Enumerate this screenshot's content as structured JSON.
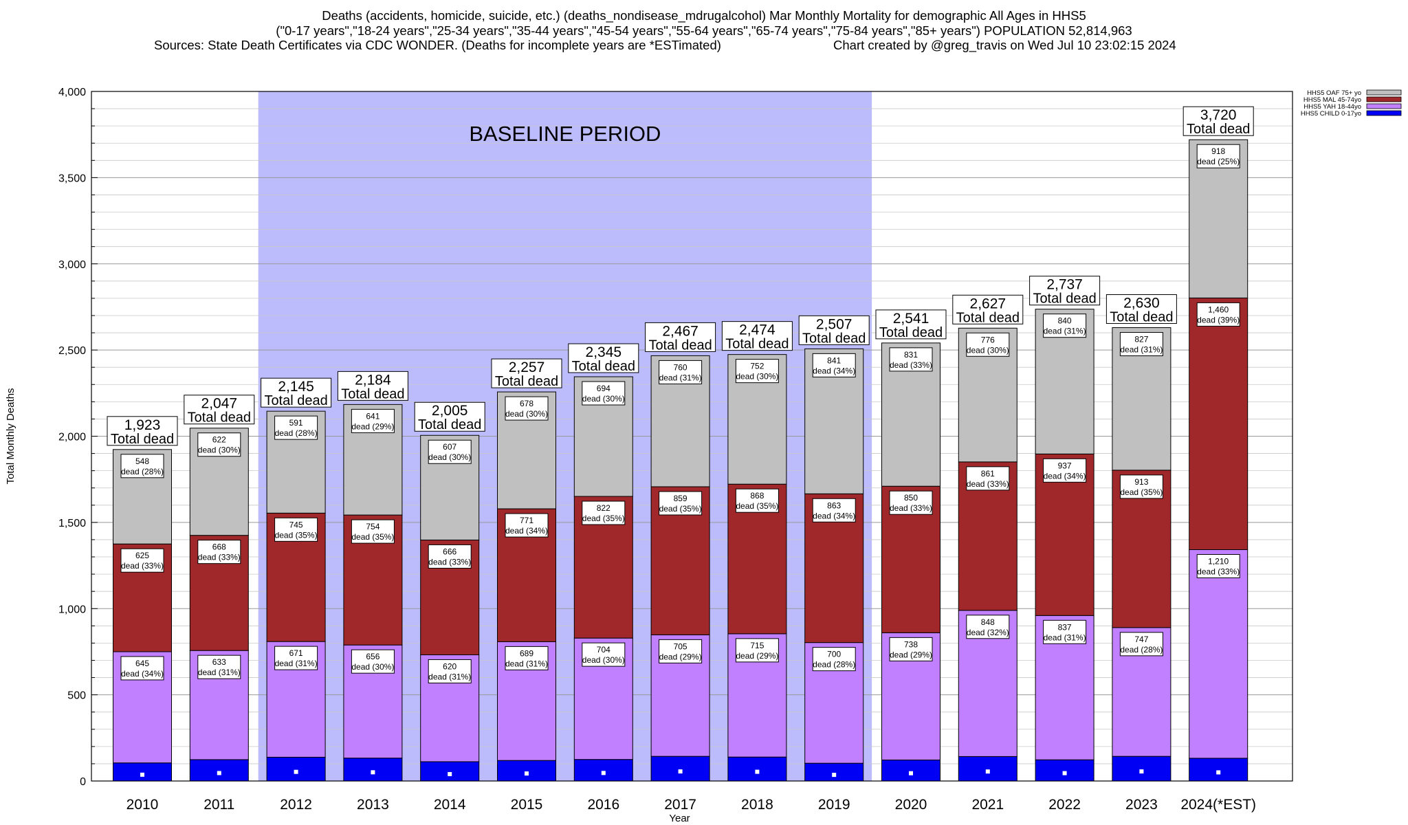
{
  "chart_data": {
    "type": "bar",
    "stacked": true,
    "title_lines": [
      "Deaths (accidents, homicide, suicide, etc.) (deaths_nondisease_mdrugalcohol) Mar Monthly Mortality for demographic All Ages in HHS5",
      "(\"0-17 years\",\"18-24 years\",\"25-34 years\",\"35-44 years\",\"45-54 years\",\"55-64 years\",\"65-74 years\",\"75-84 years\",\"85+ years\") POPULATION 52,814,963",
      "Sources: State Death Certificates via CDC WONDER. (Deaths for incomplete years are *ESTimated)",
      "Chart created by @greg_travis on Wed Jul 10 23:02:15 2024"
    ],
    "xlabel": "Year",
    "ylabel": "Total Monthly Deaths",
    "ylim": [
      0,
      4000
    ],
    "y_ticks": [
      "0",
      "500",
      "1,000",
      "1,500",
      "2,000",
      "2,500",
      "3,000",
      "3,500",
      "4,000"
    ],
    "y_tick_values": [
      0,
      500,
      1000,
      1500,
      2000,
      2500,
      3000,
      3500,
      4000
    ],
    "grid": true,
    "legend_position": "top-right",
    "categories": [
      "2010",
      "2011",
      "2012",
      "2013",
      "2014",
      "2015",
      "2016",
      "2017",
      "2018",
      "2019",
      "2020",
      "2021",
      "2022",
      "2023",
      "2024(*EST)"
    ],
    "baseline": {
      "label": "BASELINE PERIOD",
      "start": "2012",
      "end": "2019",
      "color": "#bcbcfc"
    },
    "series": [
      {
        "name": "HHS5 CHILD 0-17yo",
        "color": "#0000f5",
        "values": [
          105,
          124,
          138,
          133,
          112,
          119,
          125,
          143,
          139,
          103,
          122,
          142,
          123,
          143,
          132
        ]
      },
      {
        "name": "HHS5 YAH 18-44yo",
        "color": "#c080ff",
        "values": [
          645,
          633,
          671,
          656,
          620,
          689,
          704,
          705,
          715,
          700,
          738,
          848,
          837,
          747,
          1210
        ],
        "labels": [
          "645",
          "633",
          "671",
          "656",
          "620",
          "689",
          "704",
          "705",
          "715",
          "700",
          "738",
          "848",
          "837",
          "747",
          "1,210"
        ],
        "pct": [
          "dead (34%)",
          "dead (31%)",
          "dead (31%)",
          "dead (30%)",
          "dead (31%)",
          "dead (31%)",
          "dead (30%)",
          "dead (29%)",
          "dead (29%)",
          "dead (28%)",
          "dead (29%)",
          "dead (32%)",
          "dead (31%)",
          "dead (28%)",
          "dead (33%)"
        ]
      },
      {
        "name": "HHS5 MAL 45-74yo",
        "color": "#a0282a",
        "values": [
          625,
          668,
          745,
          754,
          666,
          771,
          822,
          859,
          868,
          863,
          850,
          861,
          937,
          913,
          1460
        ],
        "labels": [
          "625",
          "668",
          "745",
          "754",
          "666",
          "771",
          "822",
          "859",
          "868",
          "863",
          "850",
          "861",
          "937",
          "913",
          "1,460"
        ],
        "pct": [
          "dead (33%)",
          "dead (33%)",
          "dead (35%)",
          "dead (35%)",
          "dead (33%)",
          "dead (34%)",
          "dead (35%)",
          "dead (35%)",
          "dead (35%)",
          "dead (34%)",
          "dead (33%)",
          "dead (33%)",
          "dead (34%)",
          "dead (35%)",
          "dead (39%)"
        ]
      },
      {
        "name": "HHS5 OAF 75+ yo",
        "color": "#c0c0c0",
        "values": [
          548,
          622,
          591,
          641,
          607,
          678,
          694,
          760,
          752,
          841,
          831,
          776,
          840,
          827,
          918
        ],
        "labels": [
          "548",
          "622",
          "591",
          "641",
          "607",
          "678",
          "694",
          "760",
          "752",
          "841",
          "831",
          "776",
          "840",
          "827",
          "918"
        ],
        "pct": [
          "dead (28%)",
          "dead (30%)",
          "dead (28%)",
          "dead (29%)",
          "dead (30%)",
          "dead (30%)",
          "dead (30%)",
          "dead (31%)",
          "dead (30%)",
          "dead (34%)",
          "dead (33%)",
          "dead (30%)",
          "dead (31%)",
          "dead (31%)",
          "dead (25%)"
        ]
      }
    ],
    "totals": [
      1923,
      2047,
      2145,
      2184,
      2005,
      2257,
      2345,
      2467,
      2474,
      2507,
      2541,
      2627,
      2737,
      2630,
      3720
    ],
    "total_labels": [
      "1,923",
      "2,047",
      "2,145",
      "2,184",
      "2,005",
      "2,257",
      "2,345",
      "2,467",
      "2,474",
      "2,507",
      "2,541",
      "2,627",
      "2,737",
      "2,630",
      "3,720"
    ],
    "total_suffix": "Total dead"
  }
}
